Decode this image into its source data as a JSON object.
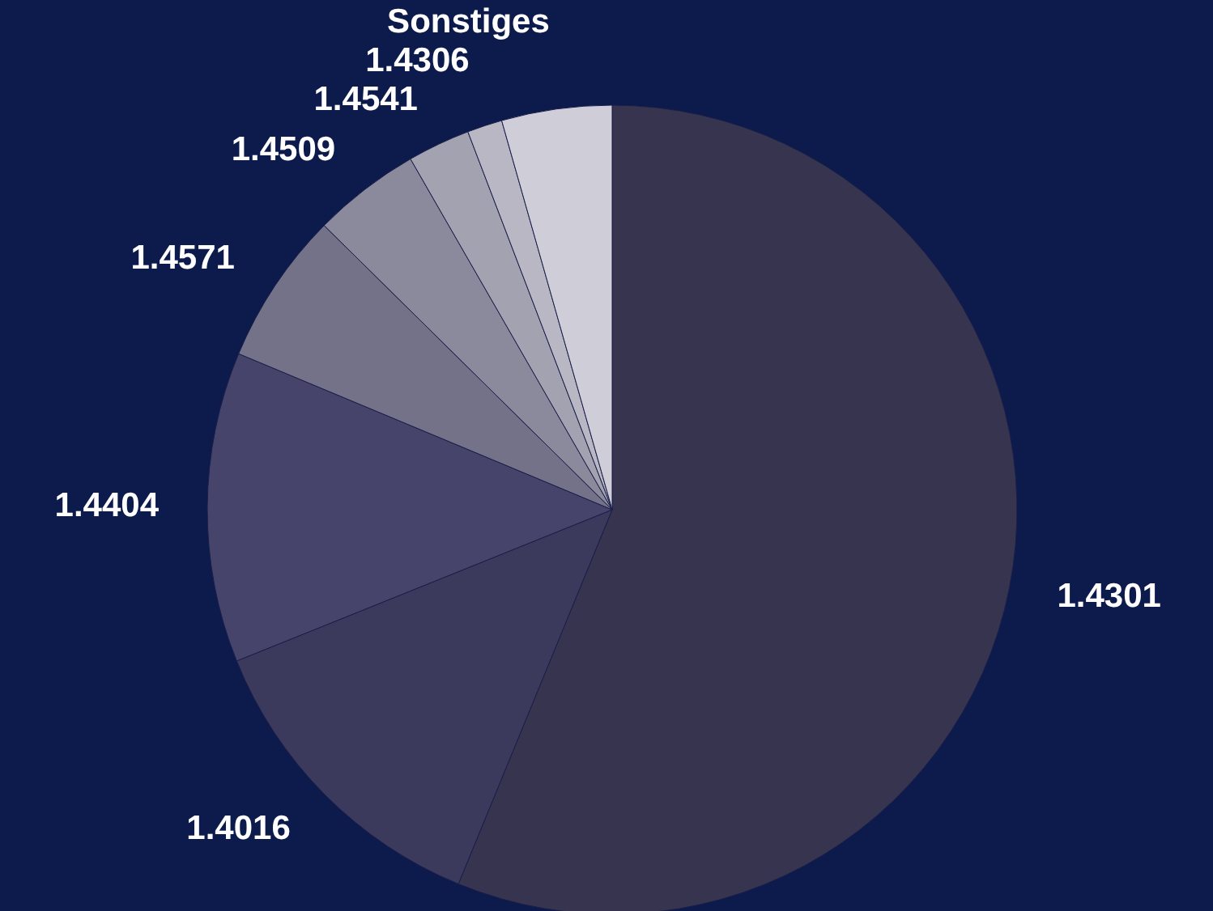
{
  "chart_data": {
    "type": "pie",
    "categories": [
      "1.4301",
      "1.4016",
      "1.4404",
      "1.4571",
      "1.4509",
      "1.4541",
      "1.4306",
      "Sonstiges"
    ],
    "values": [
      56.2,
      12.7,
      12.4,
      6.1,
      4.3,
      2.5,
      1.4,
      4.4
    ],
    "colors": [
      "#36344f",
      "#3c3a5c",
      "#46446a",
      "#737288",
      "#8b8a9c",
      "#a3a2b0",
      "#b8b7c3",
      "#cfced8"
    ],
    "legend": false
  }
}
